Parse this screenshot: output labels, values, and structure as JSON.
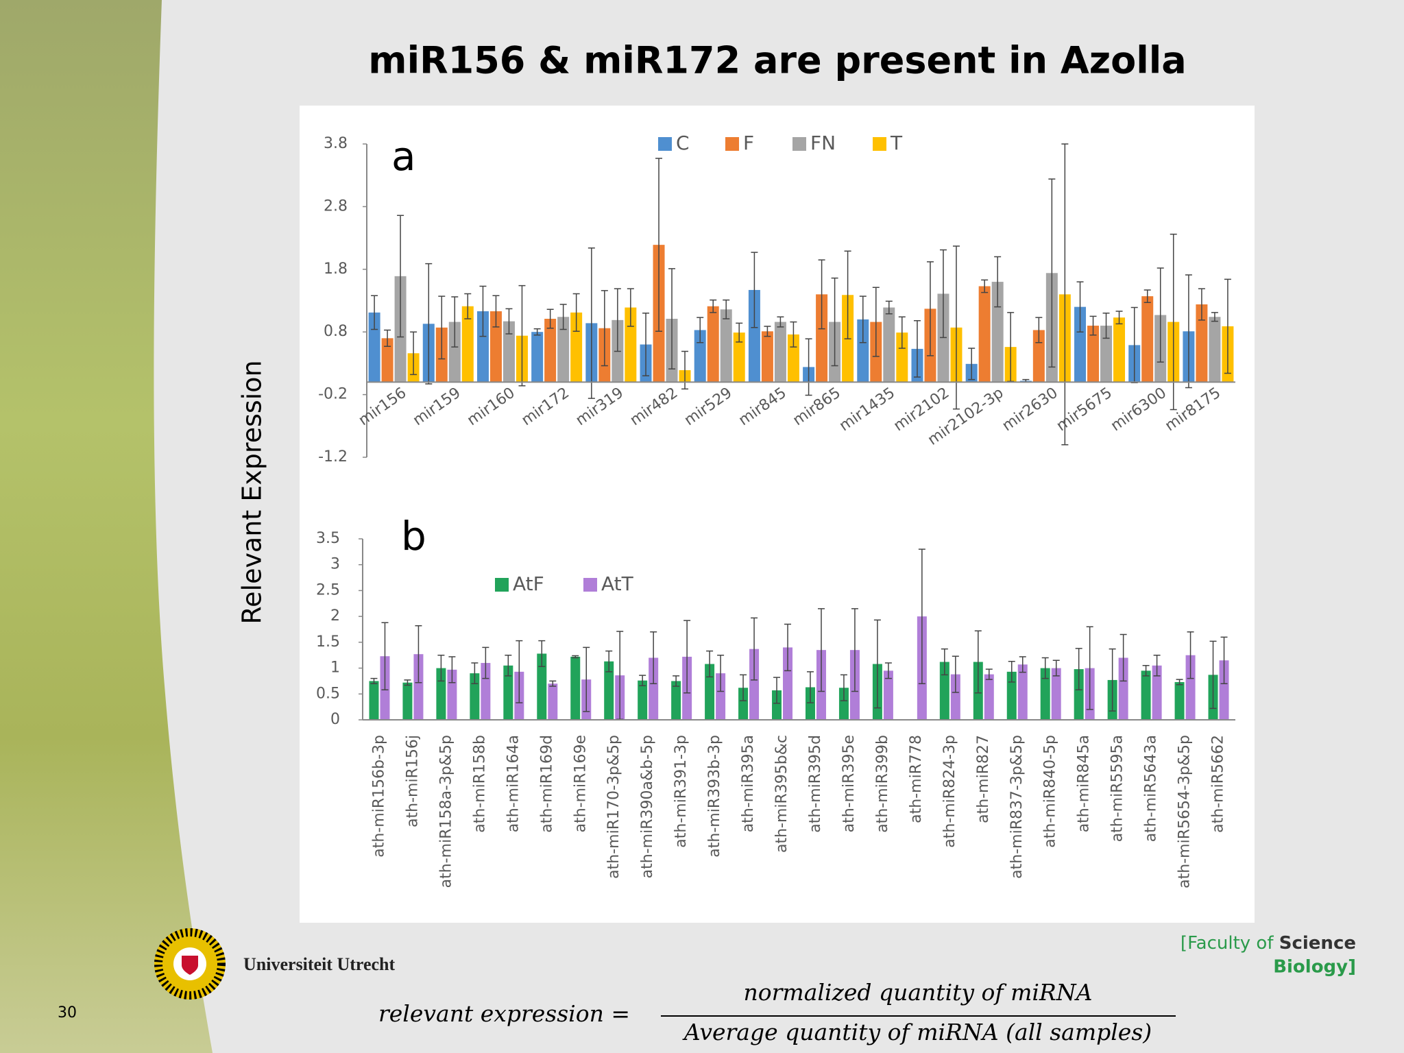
{
  "slide": {
    "title": "miR156 & miR172 are present in Azolla",
    "y_label": "Relevant Expression",
    "number": "30",
    "university": "Universiteit Utrecht",
    "faculty": "[Faculty of",
    "science": "Science",
    "department": "Biology]",
    "formula_left": "relevant expression =",
    "numerator": "normalized quantity of miRNA",
    "denominator": "Average quantity of miRNA (all samples)"
  },
  "chart_data": [
    {
      "type": "bar",
      "panel_label": "a",
      "grid": false,
      "categories": [
        "mir156",
        "mir159",
        "mir160",
        "mir172",
        "mir319",
        "mir482",
        "mir529",
        "mir845",
        "mir865",
        "mir1435",
        "mir2102",
        "mir2102-3p",
        "mir2630",
        "mir5675",
        "mir6300",
        "mir8175"
      ],
      "ylim": [
        -1.2,
        3.8
      ],
      "yticks": [
        -1.2,
        -0.2,
        0.8,
        1.8,
        2.8,
        3.8
      ],
      "series": [
        {
          "name": "C",
          "color": "#4f8fd0",
          "values": [
            1.11,
            0.93,
            1.13,
            0.8,
            0.94,
            0.6,
            0.83,
            1.47,
            0.24,
            1.0,
            0.53,
            0.29,
            0.02,
            1.2,
            0.59,
            0.81
          ],
          "errors": [
            0.27,
            0.96,
            0.4,
            0.05,
            1.2,
            0.5,
            0.2,
            0.6,
            0.45,
            0.37,
            0.45,
            0.25,
            0.02,
            0.4,
            0.6,
            0.9
          ]
        },
        {
          "name": "F",
          "color": "#ed7d31",
          "values": [
            0.7,
            0.87,
            1.13,
            1.01,
            0.86,
            2.19,
            1.21,
            0.81,
            1.4,
            0.96,
            1.17,
            1.53,
            0.83,
            0.9,
            1.37,
            1.24
          ],
          "errors": [
            0.13,
            0.5,
            0.25,
            0.15,
            0.6,
            1.38,
            0.1,
            0.08,
            0.55,
            0.55,
            0.75,
            0.1,
            0.2,
            0.15,
            0.1,
            0.25
          ]
        },
        {
          "name": "FN",
          "color": "#a5a5a5",
          "values": [
            1.69,
            0.96,
            0.97,
            1.04,
            0.99,
            1.01,
            1.16,
            0.96,
            0.96,
            1.19,
            1.41,
            1.6,
            1.74,
            0.9,
            1.07,
            1.04
          ],
          "errors": [
            0.97,
            0.4,
            0.2,
            0.2,
            0.5,
            0.8,
            0.15,
            0.08,
            0.7,
            0.1,
            0.7,
            0.4,
            1.5,
            0.2,
            0.75,
            0.07
          ]
        },
        {
          "name": "T",
          "color": "#ffc000",
          "values": [
            0.46,
            1.21,
            0.74,
            1.11,
            1.19,
            0.19,
            0.79,
            0.76,
            1.39,
            0.79,
            0.87,
            0.56,
            1.4,
            1.03,
            0.96,
            0.89
          ],
          "errors": [
            0.34,
            0.2,
            0.8,
            0.3,
            0.3,
            0.3,
            0.15,
            0.2,
            0.7,
            0.25,
            1.3,
            0.55,
            2.4,
            0.1,
            1.4,
            0.75
          ]
        }
      ]
    },
    {
      "type": "bar",
      "panel_label": "b",
      "grid": false,
      "categories": [
        "ath-miR156b-3p",
        "ath-miR156j",
        "ath-miR158a-3p&5p",
        "ath-miR158b",
        "ath-miR164a",
        "ath-miR169d",
        "ath-miR169e",
        "ath-miR170-3p&5p",
        "ath-miR390a&b-5p",
        "ath-miR391-3p",
        "ath-miR393b-3p",
        "ath-miR395a",
        "ath-miR395b&c",
        "ath-miR395d",
        "ath-miR395e",
        "ath-miR399b",
        "ath-miR778",
        "ath-miR824-3p",
        "ath-miR827",
        "ath-miR837-3p&5p",
        "ath-miR840-5p",
        "ath-miR845a",
        "ath-miR5595a",
        "ath-miR5643a",
        "ath-miR5654-3p&5p",
        "ath-miR5662"
      ],
      "ylim": [
        0,
        3.5
      ],
      "yticks": [
        0,
        0.5,
        1,
        1.5,
        2,
        2.5,
        3,
        3.5
      ],
      "series": [
        {
          "name": "AtF",
          "color": "#21a35a",
          "values": [
            0.75,
            0.72,
            1.0,
            0.9,
            1.05,
            1.28,
            1.22,
            1.13,
            0.76,
            0.75,
            1.08,
            0.62,
            0.57,
            0.63,
            0.62,
            1.08,
            null,
            1.12,
            1.12,
            0.93,
            1.0,
            0.98,
            0.77,
            0.95,
            0.73,
            0.87
          ],
          "errors": [
            0.05,
            0.05,
            0.25,
            0.2,
            0.2,
            0.25,
            0.02,
            0.2,
            0.1,
            0.1,
            0.25,
            0.25,
            0.25,
            0.3,
            0.25,
            0.85,
            null,
            0.25,
            0.6,
            0.2,
            0.2,
            0.4,
            0.6,
            0.1,
            0.05,
            0.65
          ]
        },
        {
          "name": "AtT",
          "color": "#b07ed8",
          "values": [
            1.23,
            1.27,
            0.97,
            1.1,
            0.93,
            0.7,
            0.78,
            0.86,
            1.2,
            1.22,
            0.9,
            1.37,
            1.4,
            1.35,
            1.35,
            0.95,
            2.0,
            0.88,
            0.88,
            1.07,
            1.0,
            1.0,
            1.2,
            1.05,
            1.25,
            1.15
          ],
          "errors": [
            0.65,
            0.55,
            0.25,
            0.3,
            0.6,
            0.05,
            0.62,
            0.85,
            0.5,
            0.7,
            0.35,
            0.6,
            0.45,
            0.8,
            0.8,
            0.15,
            1.3,
            0.35,
            0.1,
            0.15,
            0.15,
            0.8,
            0.45,
            0.2,
            0.45,
            0.45
          ]
        }
      ]
    }
  ]
}
